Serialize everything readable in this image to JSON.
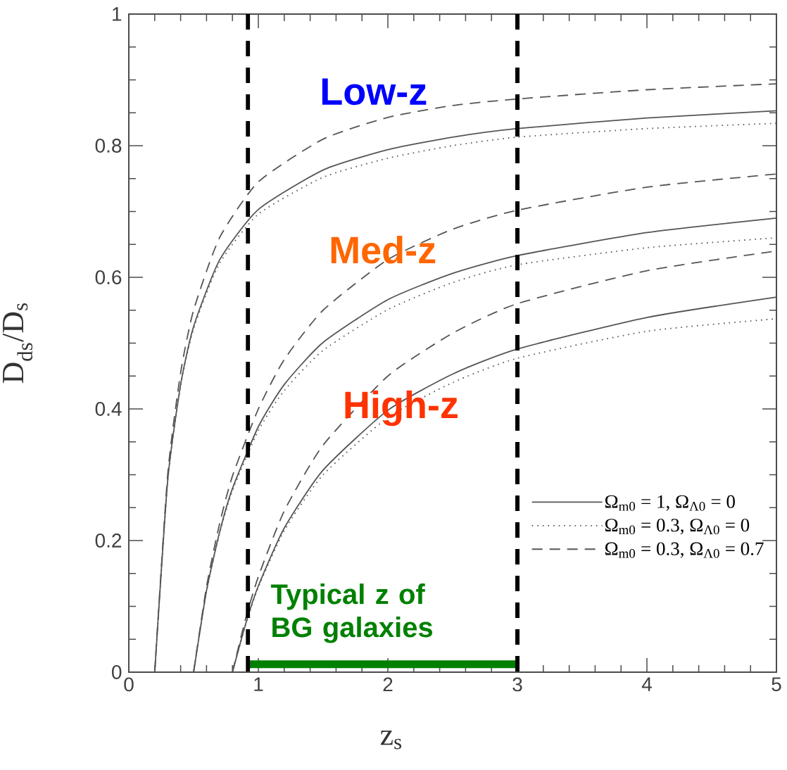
{
  "chart_data": {
    "type": "line",
    "xlabel": "z$_{s}$",
    "ylabel": "D$_{ds}$/D$_{s}$",
    "xlim": [
      0,
      5
    ],
    "ylim": [
      0,
      1
    ],
    "xticks": [
      0,
      1,
      2,
      3,
      4,
      5
    ],
    "yticks": [
      0,
      0.2,
      0.4,
      0.6,
      0.8,
      1
    ],
    "legend": "bottom right",
    "grid": false,
    "series": [
      {
        "name": "Ω$_{m0}$ = 1, Ω$_{Λ0}$ = 0",
        "color": "#555555",
        "line_style": "solid",
        "x": [
          0.2,
          0.3,
          0.4,
          0.5,
          0.7,
          1,
          1.5,
          2,
          2.5,
          3,
          4,
          5
        ],
        "values": [
          0,
          0.291,
          0.437,
          0.525,
          0.626,
          0.703,
          0.763,
          0.794,
          0.813,
          0.826,
          0.842,
          0.853
        ]
      },
      {
        "name": "Ω$_{m0}$ = 0.3, Ω$_{Λ0}$ = 0",
        "color": "#555555",
        "line_style": "dotted",
        "x": [
          0.2,
          0.3,
          0.4,
          0.5,
          0.7,
          1,
          1.5,
          2,
          2.5,
          3,
          4,
          5
        ],
        "values": [
          0,
          0.29,
          0.435,
          0.522,
          0.621,
          0.696,
          0.752,
          0.781,
          0.8,
          0.813,
          0.826,
          0.834
        ]
      },
      {
        "name": "Ω$_{m0}$ = 0.3, Ω$_{Λ0}$ = 0.7",
        "color": "#555555",
        "line_style": "dashed",
        "x": [
          0.2,
          0.3,
          0.4,
          0.5,
          0.7,
          1,
          1.5,
          2,
          2.5,
          3,
          4,
          5
        ],
        "values": [
          0,
          0.3,
          0.455,
          0.55,
          0.66,
          0.745,
          0.81,
          0.843,
          0.861,
          0.871,
          0.885,
          0.894
        ]
      },
      {
        "color": "#555555",
        "line_style": "solid",
        "x": [
          0.5,
          0.6,
          0.7,
          0.8,
          1,
          1.2,
          1.5,
          2,
          2.5,
          3,
          4,
          5
        ],
        "values": [
          0,
          0.124,
          0.212,
          0.279,
          0.373,
          0.437,
          0.501,
          0.566,
          0.606,
          0.633,
          0.668,
          0.69
        ]
      },
      {
        "color": "#555555",
        "line_style": "dotted",
        "x": [
          0.5,
          0.6,
          0.7,
          0.8,
          1,
          1.2,
          1.5,
          2,
          2.5,
          3,
          4,
          5
        ],
        "values": [
          0,
          0.123,
          0.21,
          0.276,
          0.367,
          0.428,
          0.489,
          0.551,
          0.592,
          0.619,
          0.645,
          0.66
        ]
      },
      {
        "color": "#555555",
        "line_style": "dashed",
        "x": [
          0.5,
          0.6,
          0.7,
          0.8,
          1,
          1.2,
          1.5,
          2,
          2.5,
          3,
          4,
          5
        ],
        "values": [
          0,
          0.13,
          0.225,
          0.298,
          0.4,
          0.475,
          0.55,
          0.627,
          0.673,
          0.702,
          0.737,
          0.757
        ]
      },
      {
        "color": "#555555",
        "line_style": "solid",
        "x": [
          0.8,
          0.9,
          1,
          1.2,
          1.5,
          2,
          2.5,
          3,
          4,
          5
        ],
        "values": [
          0,
          0.072,
          0.131,
          0.219,
          0.307,
          0.398,
          0.453,
          0.491,
          0.539,
          0.57
        ]
      },
      {
        "color": "#555555",
        "line_style": "dotted",
        "x": [
          0.8,
          0.9,
          1,
          1.2,
          1.5,
          2,
          2.5,
          3,
          4,
          5
        ],
        "values": [
          0,
          0.071,
          0.129,
          0.215,
          0.3,
          0.387,
          0.44,
          0.477,
          0.518,
          0.537
        ]
      },
      {
        "color": "#555555",
        "line_style": "dashed",
        "x": [
          0.8,
          0.9,
          1,
          1.2,
          1.5,
          2,
          2.5,
          3,
          4,
          5
        ],
        "values": [
          0,
          0.08,
          0.145,
          0.245,
          0.345,
          0.45,
          0.515,
          0.56,
          0.61,
          0.64
        ]
      },
      {
        "type": "line",
        "name": "Typical z of BG galaxies",
        "color": "#008000",
        "line_style": "solid",
        "x": [
          0.92,
          3
        ],
        "values": [
          0.012,
          0.012
        ]
      }
    ],
    "ref_lines": [
      {
        "axis": "x",
        "value": 0.92,
        "color": "#000000",
        "line_style": "dashed"
      },
      {
        "axis": "x",
        "value": 3,
        "color": "#000000",
        "line_style": "dashed"
      }
    ],
    "annotations": [
      "Low-z",
      "Med-z",
      "High-z"
    ]
  }
}
